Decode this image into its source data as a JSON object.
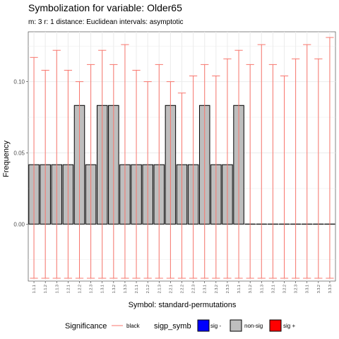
{
  "chart_data": {
    "type": "bar",
    "title": "Symbolization for variable: Older65",
    "subtitle": "m: 3  r:  1  distance:  Euclidean  intervals:  asymptotic",
    "xlabel": "Symbol: standard-permutations",
    "ylabel": "Frequency",
    "ylim": [
      -0.04,
      0.135
    ],
    "yticks": [
      0.0,
      0.05,
      0.1
    ],
    "ytick_labels": [
      "0.00",
      "0.05",
      "0.10"
    ],
    "grid": true,
    "legend_position": "bottom",
    "categories": [
      "1.1.1",
      "1.1.2",
      "1.1.3",
      "1.2.1",
      "1.2.2",
      "1.2.3",
      "1.3.1",
      "1.3.2",
      "1.3.3",
      "2.1.1",
      "2.1.2",
      "2.1.3",
      "2.2.1",
      "2.2.2",
      "2.2.3",
      "2.3.1",
      "2.3.2",
      "2.3.3",
      "3.1.1",
      "3.1.2",
      "3.1.3",
      "3.2.1",
      "3.2.2",
      "3.2.3",
      "3.3.1",
      "3.3.2",
      "3.3.3"
    ],
    "values": [
      0.0417,
      0.0417,
      0.0417,
      0.0417,
      0.0833,
      0.0417,
      0.0833,
      0.0833,
      0.0417,
      0.0417,
      0.0417,
      0.0417,
      0.0833,
      0.0417,
      0.0417,
      0.0833,
      0.0417,
      0.0417,
      0.0833,
      0,
      0,
      0,
      0,
      0,
      0,
      0,
      0
    ],
    "interval_upper": [
      0.117,
      0.108,
      0.122,
      0.108,
      0.1,
      0.112,
      0.122,
      0.112,
      0.126,
      0.108,
      0.1,
      0.112,
      0.1,
      0.092,
      0.104,
      0.112,
      0.104,
      0.116,
      0.122,
      0.112,
      0.126,
      0.112,
      0.104,
      0.116,
      0.126,
      0.116,
      0.131
    ],
    "interval_lower": [
      -0.038,
      -0.038,
      -0.038,
      -0.038,
      -0.038,
      -0.038,
      -0.038,
      -0.038,
      -0.038,
      -0.038,
      -0.038,
      -0.038,
      -0.038,
      -0.038,
      -0.038,
      -0.038,
      -0.038,
      -0.038,
      -0.038,
      -0.038,
      -0.038,
      -0.038,
      -0.038,
      -0.038,
      -0.038,
      -0.038,
      -0.038
    ],
    "significance": [
      "non-sig",
      "non-sig",
      "non-sig",
      "non-sig",
      "non-sig",
      "non-sig",
      "non-sig",
      "non-sig",
      "non-sig",
      "non-sig",
      "non-sig",
      "non-sig",
      "non-sig",
      "non-sig",
      "non-sig",
      "non-sig",
      "non-sig",
      "non-sig",
      "non-sig",
      "non-sig",
      "non-sig",
      "non-sig",
      "non-sig",
      "non-sig",
      "non-sig",
      "non-sig",
      "non-sig"
    ],
    "legend": {
      "line_title": "Significance",
      "line_label": "black",
      "fill_title": "sigp_symb",
      "items": [
        {
          "label": "sig -",
          "color": "#0000ff"
        },
        {
          "label": "non-sig",
          "color": "#bebebe"
        },
        {
          "label": "sig +",
          "color": "#ff0000"
        }
      ]
    },
    "colors": {
      "bar_fill": "#bebebe",
      "bar_stroke": "#000000",
      "interval": "#f8766d",
      "grid": "#ebebeb"
    }
  }
}
